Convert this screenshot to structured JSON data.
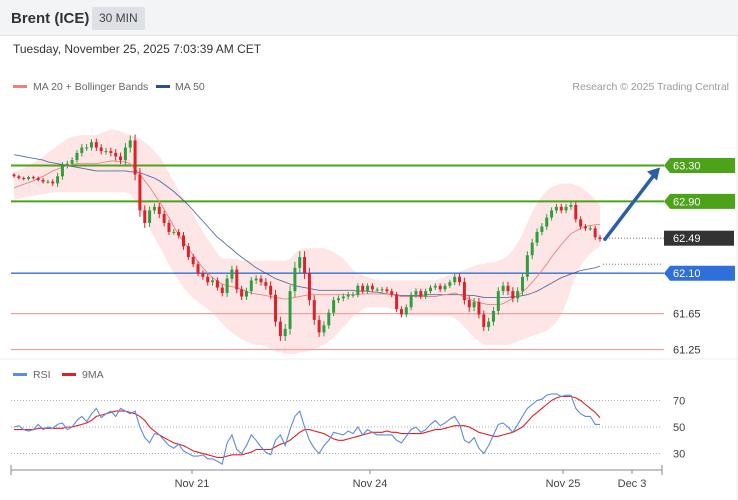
{
  "header": {
    "title": "Brent (ICE)",
    "timeframe": "30 MIN",
    "timestamp": "Tuesday, November 25, 2025 7:03:39 AM CET"
  },
  "legend": {
    "ma20": "MA 20 + Bollinger Bands",
    "ma50": "MA 50",
    "copyright": "Research © 2025 Trading Central",
    "rsi": "RSI",
    "rsi_ma": "9MA"
  },
  "colors": {
    "ma20": "#f08080",
    "ma50": "#2c4f8f",
    "band_fill": "#ffe3e3",
    "up_candle": "#2e9e3e",
    "down_candle": "#d9222a",
    "resistance": "#4ca31a",
    "pivot": "#2f6fdb",
    "support": "#f2a0a0",
    "current": "#333333",
    "arrow": "#2b5ea7",
    "rsi": "#5b8be0",
    "rsi_ma": "#e02020"
  },
  "chart_data": [
    {
      "type": "candlestick",
      "ylim": [
        61.1,
        63.6
      ],
      "x_ticks": [
        "Nov 21",
        "Nov 24",
        "Nov 25",
        "Dec 3"
      ],
      "levels": [
        {
          "label": "63.30",
          "value": 63.3,
          "kind": "resistance"
        },
        {
          "label": "62.90",
          "value": 62.9,
          "kind": "resistance"
        },
        {
          "label": "62.49",
          "value": 62.49,
          "kind": "current"
        },
        {
          "label": "62.10",
          "value": 62.1,
          "kind": "pivot"
        },
        {
          "label": "61.65",
          "value": 61.65,
          "kind": "support"
        },
        {
          "label": "61.25",
          "value": 61.25,
          "kind": "support"
        }
      ],
      "arrow": {
        "from": 62.49,
        "to": 63.3
      },
      "close": [
        63.18,
        63.16,
        63.15,
        63.17,
        63.16,
        63.14,
        63.12,
        63.12,
        63.1,
        63.18,
        63.3,
        63.32,
        63.36,
        63.44,
        63.5,
        63.5,
        63.56,
        63.5,
        63.46,
        63.46,
        63.44,
        63.4,
        63.36,
        63.5,
        63.58,
        63.2,
        62.8,
        62.66,
        62.8,
        62.84,
        62.76,
        62.66,
        62.56,
        62.56,
        62.52,
        62.4,
        62.28,
        62.2,
        62.1,
        62.06,
        62.0,
        62.02,
        61.94,
        61.88,
        62.04,
        62.14,
        61.92,
        61.84,
        61.9,
        62.02,
        62.04,
        62.0,
        61.96,
        61.86,
        61.56,
        61.4,
        61.48,
        61.9,
        62.16,
        62.28,
        62.1,
        61.8,
        61.58,
        61.44,
        61.52,
        61.66,
        61.8,
        61.82,
        61.84,
        61.86,
        61.86,
        61.96,
        61.9,
        61.96,
        61.92,
        61.92,
        61.92,
        61.9,
        61.86,
        61.7,
        61.64,
        61.72,
        61.86,
        61.9,
        61.84,
        61.9,
        61.94,
        61.96,
        61.92,
        61.96,
        62.0,
        62.06,
        62.0,
        61.8,
        61.72,
        61.78,
        61.64,
        61.5,
        61.56,
        61.68,
        61.9,
        61.96,
        61.9,
        61.82,
        61.9,
        62.06,
        62.3,
        62.44,
        62.56,
        62.62,
        62.72,
        62.8,
        62.84,
        62.8,
        62.84,
        62.86,
        62.7,
        62.62,
        62.6,
        62.6,
        62.5,
        62.48
      ],
      "volatility": [
        0.03,
        0.03,
        0.03,
        0.03,
        0.03,
        0.03,
        0.04,
        0.04,
        0.05,
        0.07,
        0.07,
        0.06,
        0.06,
        0.06,
        0.07,
        0.07,
        0.06,
        0.07,
        0.07,
        0.07,
        0.07,
        0.08,
        0.08,
        0.09,
        0.1,
        0.12,
        0.13,
        0.1,
        0.08,
        0.07,
        0.08,
        0.07,
        0.06,
        0.06,
        0.06,
        0.07,
        0.06,
        0.06,
        0.06,
        0.06,
        0.07,
        0.07,
        0.06,
        0.07,
        0.08,
        0.08,
        0.08,
        0.07,
        0.07,
        0.07,
        0.07,
        0.07,
        0.08,
        0.09,
        0.1,
        0.1,
        0.1,
        0.12,
        0.12,
        0.12,
        0.12,
        0.11,
        0.1,
        0.09,
        0.08,
        0.07,
        0.07,
        0.06,
        0.06,
        0.06,
        0.06,
        0.05,
        0.05,
        0.05,
        0.05,
        0.04,
        0.05,
        0.05,
        0.05,
        0.06,
        0.06,
        0.06,
        0.06,
        0.06,
        0.05,
        0.05,
        0.05,
        0.05,
        0.05,
        0.05,
        0.05,
        0.06,
        0.07,
        0.09,
        0.09,
        0.08,
        0.08,
        0.08,
        0.08,
        0.08,
        0.08,
        0.08,
        0.08,
        0.08,
        0.08,
        0.08,
        0.08,
        0.08,
        0.07,
        0.07,
        0.07,
        0.06,
        0.06,
        0.06,
        0.06,
        0.06,
        0.06,
        0.06,
        0.05,
        0.05,
        0.05,
        0.05
      ],
      "bb_upper": [
        63.24,
        63.25,
        63.27,
        63.3,
        63.33,
        63.36,
        63.4,
        63.44,
        63.48,
        63.52,
        63.56,
        63.6,
        63.62,
        63.63,
        63.64,
        63.64,
        63.64,
        63.64,
        63.66,
        63.68,
        63.7,
        63.7,
        63.68,
        63.66,
        63.64,
        63.62,
        63.6,
        63.56,
        63.52,
        63.46,
        63.4,
        63.32,
        63.22,
        63.12,
        63.02,
        62.94,
        62.86,
        62.76,
        62.66,
        62.56,
        62.48,
        62.4,
        62.32,
        62.26,
        62.26,
        62.26,
        62.26,
        62.24,
        62.24,
        62.24,
        62.24,
        62.24,
        62.24,
        62.24,
        62.24,
        62.24,
        62.24,
        62.26,
        62.32,
        62.36,
        62.38,
        62.38,
        62.38,
        62.38,
        62.38,
        62.36,
        62.34,
        62.3,
        62.26,
        62.2,
        62.14,
        62.1,
        62.08,
        62.06,
        62.04,
        62.02,
        62.02,
        62.02,
        62.02,
        62.02,
        62.02,
        62.02,
        62.02,
        62.02,
        62.02,
        62.02,
        62.02,
        62.02,
        62.04,
        62.06,
        62.08,
        62.1,
        62.12,
        62.14,
        62.16,
        62.18,
        62.2,
        62.2,
        62.22,
        62.22,
        62.24,
        62.26,
        62.3,
        62.36,
        62.44,
        62.54,
        62.66,
        62.78,
        62.88,
        62.96,
        63.02,
        63.06,
        63.08,
        63.1,
        63.1,
        63.1,
        63.08,
        63.06,
        63.02,
        62.98,
        62.92,
        62.86
      ],
      "bb_lower": [
        62.92,
        62.93,
        62.94,
        62.95,
        62.96,
        62.97,
        62.98,
        62.99,
        63.0,
        63.0,
        63.0,
        63.0,
        63.0,
        63.0,
        63.0,
        63.0,
        63.0,
        63.0,
        63.0,
        63.0,
        63.0,
        63.0,
        63.0,
        63.0,
        62.98,
        62.9,
        62.8,
        62.7,
        62.6,
        62.5,
        62.4,
        62.3,
        62.2,
        62.1,
        62.02,
        61.94,
        61.88,
        61.82,
        61.78,
        61.74,
        61.7,
        61.66,
        61.6,
        61.54,
        61.48,
        61.44,
        61.4,
        61.36,
        61.34,
        61.32,
        61.3,
        61.3,
        61.28,
        61.26,
        61.24,
        61.22,
        61.2,
        61.2,
        61.2,
        61.22,
        61.22,
        61.24,
        61.26,
        61.28,
        61.3,
        61.34,
        61.38,
        61.44,
        61.5,
        61.56,
        61.62,
        61.66,
        61.7,
        61.72,
        61.72,
        61.72,
        61.72,
        61.72,
        61.7,
        61.68,
        61.66,
        61.64,
        61.62,
        61.62,
        61.62,
        61.62,
        61.62,
        61.62,
        61.62,
        61.62,
        61.62,
        61.6,
        61.56,
        61.5,
        61.44,
        61.38,
        61.34,
        61.3,
        61.3,
        61.3,
        61.3,
        61.3,
        61.3,
        61.32,
        61.34,
        61.36,
        61.38,
        61.4,
        61.42,
        61.44,
        61.46,
        61.5,
        61.56,
        61.64,
        61.76,
        61.92,
        62.06,
        62.18,
        62.26,
        62.32,
        62.36,
        62.4
      ],
      "ma20": [
        63.05,
        63.07,
        63.09,
        63.11,
        63.13,
        63.16,
        63.18,
        63.21,
        63.24,
        63.26,
        63.28,
        63.3,
        63.31,
        63.32,
        63.32,
        63.32,
        63.32,
        63.32,
        63.33,
        63.34,
        63.35,
        63.35,
        63.34,
        63.34,
        63.32,
        63.26,
        63.2,
        63.13,
        63.06,
        62.98,
        62.9,
        62.81,
        62.72,
        62.62,
        62.53,
        62.45,
        62.38,
        62.3,
        62.23,
        62.16,
        62.1,
        62.05,
        62.01,
        61.98,
        61.96,
        61.95,
        61.94,
        61.92,
        61.9,
        61.88,
        61.87,
        61.86,
        61.85,
        61.84,
        61.83,
        61.82,
        61.81,
        61.82,
        61.83,
        61.84,
        61.85,
        61.86,
        61.86,
        61.86,
        61.86,
        61.86,
        61.86,
        61.86,
        61.86,
        61.86,
        61.86,
        61.86,
        61.87,
        61.87,
        61.87,
        61.87,
        61.87,
        61.87,
        61.86,
        61.85,
        61.84,
        61.84,
        61.84,
        61.84,
        61.84,
        61.84,
        61.84,
        61.84,
        61.85,
        61.86,
        61.87,
        61.88,
        61.86,
        61.83,
        61.81,
        61.79,
        61.77,
        61.76,
        61.75,
        61.75,
        61.75,
        61.76,
        61.79,
        61.82,
        61.85,
        61.89,
        61.94,
        62.0,
        62.06,
        62.13,
        62.2,
        62.28,
        62.35,
        62.42,
        62.48,
        62.54,
        62.57,
        62.6,
        62.62,
        62.63,
        62.64,
        62.64
      ],
      "ma50": [
        63.42,
        63.41,
        63.4,
        63.39,
        63.38,
        63.37,
        63.36,
        63.34,
        63.33,
        63.32,
        63.31,
        63.3,
        63.29,
        63.28,
        63.27,
        63.26,
        63.25,
        63.24,
        63.24,
        63.24,
        63.24,
        63.24,
        63.24,
        63.24,
        63.23,
        63.23,
        63.22,
        63.2,
        63.18,
        63.16,
        63.13,
        63.09,
        63.05,
        63.01,
        62.96,
        62.91,
        62.86,
        62.8,
        62.74,
        62.68,
        62.62,
        62.56,
        62.5,
        62.46,
        62.41,
        62.37,
        62.32,
        62.28,
        62.24,
        62.2,
        62.16,
        62.13,
        62.1,
        62.07,
        62.04,
        62.02,
        62.0,
        61.98,
        61.96,
        61.95,
        61.94,
        61.93,
        61.92,
        61.91,
        61.91,
        61.91,
        61.91,
        61.91,
        61.91,
        61.91,
        61.91,
        61.9,
        61.9,
        61.9,
        61.89,
        61.89,
        61.88,
        61.87,
        61.86,
        61.86,
        61.85,
        61.85,
        61.85,
        61.85,
        61.85,
        61.86,
        61.86,
        61.86,
        61.86,
        61.86,
        61.86,
        61.86,
        61.86,
        61.86,
        61.85,
        61.85,
        61.84,
        61.83,
        61.83,
        61.83,
        61.83,
        61.83,
        61.83,
        61.84,
        61.84,
        61.85,
        61.86,
        61.88,
        61.9,
        61.93,
        61.96,
        61.99,
        62.02,
        62.05,
        62.07,
        62.09,
        62.11,
        62.13,
        62.14,
        62.15,
        62.16,
        62.18
      ]
    },
    {
      "type": "line",
      "ylim": [
        20,
        80
      ],
      "y_ticks": [
        "70",
        "50",
        "30"
      ],
      "overbought": 70,
      "oversold": 30,
      "current": 52,
      "rsi": [
        50,
        51,
        48,
        47,
        48,
        52,
        48,
        50,
        49,
        52,
        53,
        48,
        50,
        55,
        58,
        54,
        60,
        64,
        57,
        60,
        62,
        58,
        64,
        62,
        60,
        62,
        50,
        42,
        38,
        45,
        44,
        40,
        36,
        34,
        37,
        32,
        30,
        28,
        28,
        29,
        26,
        26,
        24,
        22,
        38,
        44,
        33,
        30,
        36,
        44,
        40,
        35,
        31,
        29,
        40,
        44,
        36,
        48,
        58,
        62,
        50,
        40,
        34,
        30,
        36,
        40,
        46,
        45,
        44,
        47,
        45,
        50,
        44,
        48,
        46,
        44,
        44,
        44,
        44,
        40,
        38,
        43,
        48,
        50,
        46,
        48,
        52,
        55,
        51,
        53,
        56,
        58,
        52,
        40,
        38,
        42,
        34,
        30,
        36,
        44,
        52,
        53,
        50,
        46,
        52,
        58,
        64,
        67,
        70,
        71,
        74,
        75,
        75,
        73,
        74,
        74,
        64,
        60,
        58,
        58,
        52,
        52
      ],
      "rsi_ma": [
        48,
        48,
        48,
        48,
        48,
        49,
        49,
        49,
        49,
        49,
        49,
        50,
        50,
        51,
        52,
        53,
        55,
        58,
        59,
        60,
        61,
        62,
        62,
        62,
        61,
        60,
        58,
        55,
        50,
        47,
        44,
        42,
        40,
        38,
        37,
        36,
        34,
        32,
        31,
        30,
        29,
        28,
        27,
        27,
        28,
        29,
        29,
        29,
        30,
        31,
        33,
        33,
        33,
        33,
        35,
        37,
        38,
        40,
        43,
        46,
        48,
        48,
        47,
        46,
        45,
        43,
        41,
        40,
        40,
        41,
        42,
        43,
        44,
        45,
        46,
        46,
        46,
        47,
        46,
        46,
        45,
        45,
        45,
        45,
        45,
        46,
        47,
        48,
        48,
        49,
        50,
        51,
        51,
        51,
        50,
        48,
        46,
        45,
        44,
        43,
        43,
        44,
        45,
        46,
        48,
        50,
        54,
        58,
        61,
        64,
        67,
        70,
        72,
        73,
        73,
        73,
        72,
        70,
        67,
        64,
        61,
        57
      ]
    }
  ]
}
